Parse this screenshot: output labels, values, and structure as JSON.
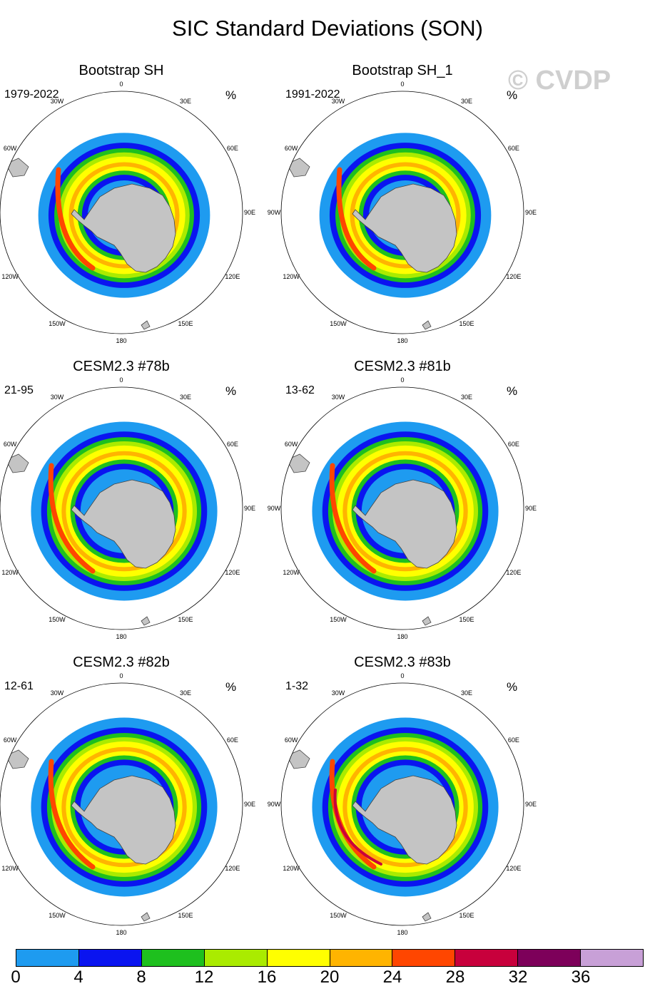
{
  "title": "SIC Standard Deviations (SON)",
  "watermark": "© CVDP",
  "colors": {
    "bins": [
      "#1e9bf0",
      "#0a14f0",
      "#1ec01e",
      "#aaeb00",
      "#ffff00",
      "#ffb400",
      "#ff4600",
      "#c8003c",
      "#7d005a",
      "#c8a0d7"
    ],
    "land": "#c4c4c4",
    "coast": "#444444"
  },
  "lon_labels": [
    "0",
    "30E",
    "60E",
    "90E",
    "120E",
    "150E",
    "180",
    "150W",
    "120W",
    "90W",
    "60W",
    "30W"
  ],
  "panels": [
    {
      "title": "Bootstrap SH",
      "years": "1979-2022",
      "unit": "%",
      "peak_std": 28
    },
    {
      "title": "Bootstrap SH_1",
      "years": "1991-2022",
      "unit": "%",
      "peak_std": 28
    },
    {
      "title": "CESM2.3 #78b",
      "years": "21-95",
      "unit": "%",
      "peak_std": 28
    },
    {
      "title": "CESM2.3 #81b",
      "years": "13-62",
      "unit": "%",
      "peak_std": 28
    },
    {
      "title": "CESM2.3 #82b",
      "years": "12-61",
      "unit": "%",
      "peak_std": 28
    },
    {
      "title": "CESM2.3 #83b",
      "years": "1-32",
      "unit": "%",
      "peak_std": 32
    }
  ],
  "colorbar": {
    "labels": [
      "0",
      "4",
      "8",
      "12",
      "16",
      "20",
      "24",
      "28",
      "32",
      "36"
    ]
  }
}
